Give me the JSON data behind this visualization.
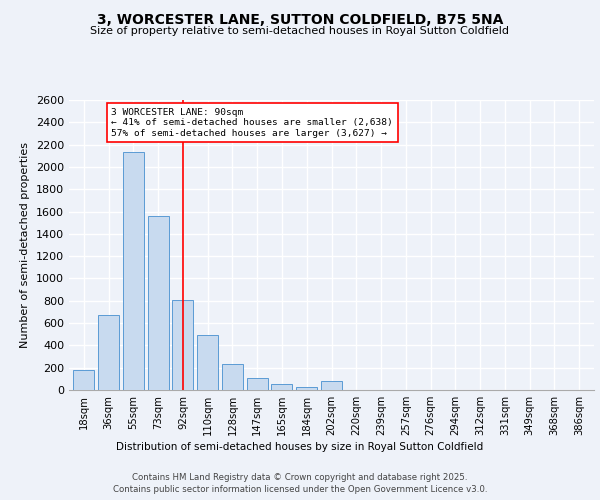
{
  "title_line1": "3, WORCESTER LANE, SUTTON COLDFIELD, B75 5NA",
  "title_line2": "Size of property relative to semi-detached houses in Royal Sutton Coldfield",
  "xlabel": "Distribution of semi-detached houses by size in Royal Sutton Coldfield",
  "ylabel": "Number of semi-detached properties",
  "categories": [
    "18sqm",
    "36sqm",
    "55sqm",
    "73sqm",
    "92sqm",
    "110sqm",
    "128sqm",
    "147sqm",
    "165sqm",
    "184sqm",
    "202sqm",
    "220sqm",
    "239sqm",
    "257sqm",
    "276sqm",
    "294sqm",
    "312sqm",
    "331sqm",
    "349sqm",
    "368sqm",
    "386sqm"
  ],
  "bar_values": [
    175,
    670,
    2130,
    1560,
    810,
    490,
    235,
    110,
    55,
    30,
    85,
    0,
    0,
    0,
    0,
    0,
    0,
    0,
    0,
    0,
    0
  ],
  "bar_color": "#c8daef",
  "bar_edge_color": "#5b9bd5",
  "highlight_index": 4,
  "annotation_line1": "3 WORCESTER LANE: 90sqm",
  "annotation_line2": "← 41% of semi-detached houses are smaller (2,638)",
  "annotation_line3": "57% of semi-detached houses are larger (3,627) →",
  "ylim": [
    0,
    2600
  ],
  "yticks": [
    0,
    200,
    400,
    600,
    800,
    1000,
    1200,
    1400,
    1600,
    1800,
    2000,
    2200,
    2400,
    2600
  ],
  "background_color": "#eef2f9",
  "plot_bg_color": "#eef2f9",
  "grid_color": "#ffffff",
  "footer_line1": "Contains HM Land Registry data © Crown copyright and database right 2025.",
  "footer_line2": "Contains public sector information licensed under the Open Government Licence v3.0."
}
